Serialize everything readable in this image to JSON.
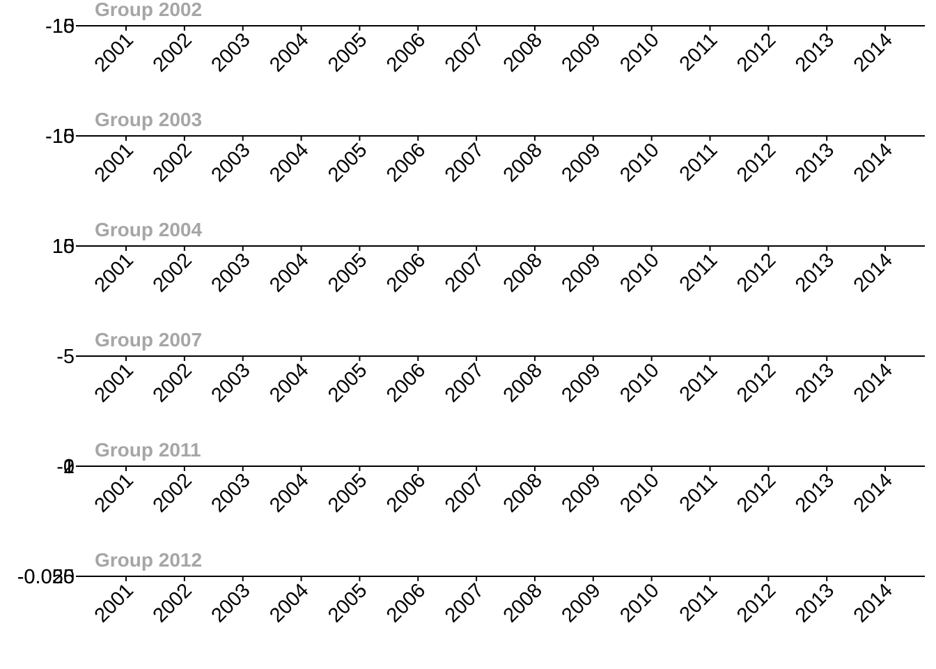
{
  "chart_data": [
    {
      "type": "line",
      "title": "Group 2002",
      "x": [
        "2001",
        "2002",
        "2003",
        "2004",
        "2005",
        "2006",
        "2007",
        "2008",
        "2009",
        "2010",
        "2011",
        "2012",
        "2013",
        "2014"
      ],
      "y_tick_labels": [
        "-15",
        "-10"
      ],
      "series": []
    },
    {
      "type": "line",
      "title": "Group 2003",
      "x": [
        "2001",
        "2002",
        "2003",
        "2004",
        "2005",
        "2006",
        "2007",
        "2008",
        "2009",
        "2010",
        "2011",
        "2012",
        "2013",
        "2014"
      ],
      "y_tick_labels": [
        "-15",
        "-10"
      ],
      "series": []
    },
    {
      "type": "line",
      "title": "Group 2004",
      "x": [
        "2001",
        "2002",
        "2003",
        "2004",
        "2005",
        "2006",
        "2007",
        "2008",
        "2009",
        "2010",
        "2011",
        "2012",
        "2013",
        "2014"
      ],
      "y_tick_labels": [
        "10",
        "15"
      ],
      "series": []
    },
    {
      "type": "line",
      "title": "Group 2007",
      "x": [
        "2001",
        "2002",
        "2003",
        "2004",
        "2005",
        "2006",
        "2007",
        "2008",
        "2009",
        "2010",
        "2011",
        "2012",
        "2013",
        "2014"
      ],
      "y_tick_labels": [
        "-5"
      ],
      "series": []
    },
    {
      "type": "line",
      "title": "Group 2011",
      "x": [
        "2001",
        "2002",
        "2003",
        "2004",
        "2005",
        "2006",
        "2007",
        "2008",
        "2009",
        "2010",
        "2011",
        "2012",
        "2013",
        "2014"
      ],
      "y_tick_labels": [
        "-1",
        "0",
        "1",
        "2"
      ],
      "series": []
    },
    {
      "type": "line",
      "title": "Group 2012",
      "x": [
        "2001",
        "2002",
        "2003",
        "2004",
        "2005",
        "2006",
        "2007",
        "2008",
        "2009",
        "2010",
        "2011",
        "2012",
        "2013",
        "2014"
      ],
      "y_tick_labels": [
        "-0.050",
        "-0.025"
      ],
      "series": []
    }
  ]
}
